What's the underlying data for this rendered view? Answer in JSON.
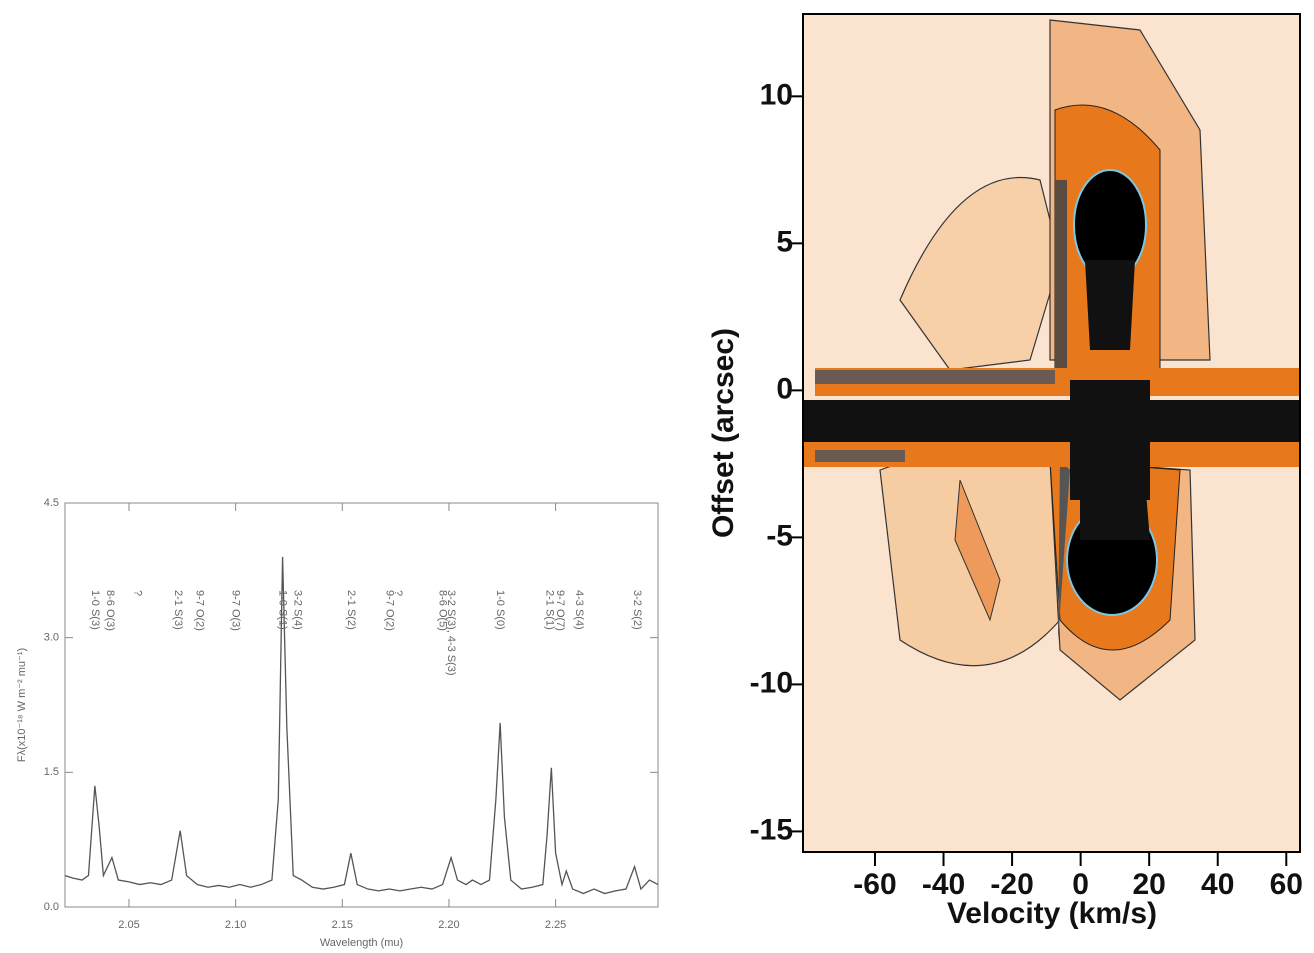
{
  "chart_data": [
    {
      "type": "line",
      "x_label": "Wavelength (mu)",
      "y_label": "Fλ(x10⁻¹⁸ W m⁻² mu⁻¹)",
      "xlim": [
        2.02,
        2.298
      ],
      "ylim": [
        0,
        4.5
      ],
      "xticks": [
        2.05,
        {
          "value": 2.1,
          "label": "2.10"
        },
        2.15,
        {
          "value": 2.2,
          "label": "2.20"
        },
        2.25
      ],
      "yticks": [
        {
          "value": 0,
          "label": "0.0"
        },
        1.5,
        {
          "value": 3,
          "label": "3.0"
        },
        4.5
      ],
      "color": "#555555",
      "x": [
        2.02,
        2.024,
        2.028,
        2.031,
        2.034,
        2.036,
        2.038,
        2.042,
        2.045,
        2.05,
        2.055,
        2.06,
        2.065,
        2.07,
        2.074,
        2.077,
        2.082,
        2.087,
        2.092,
        2.097,
        2.102,
        2.107,
        2.112,
        2.117,
        2.12,
        2.122,
        2.124,
        2.127,
        2.131,
        2.136,
        2.141,
        2.146,
        2.151,
        2.154,
        2.157,
        2.162,
        2.167,
        2.172,
        2.177,
        2.182,
        2.187,
        2.192,
        2.197,
        2.201,
        2.204,
        2.208,
        2.211,
        2.215,
        2.219,
        2.222,
        2.224,
        2.226,
        2.229,
        2.234,
        2.239,
        2.244,
        2.246,
        2.248,
        2.25,
        2.253,
        2.255,
        2.258,
        2.263,
        2.268,
        2.273,
        2.278,
        2.283,
        2.287,
        2.29,
        2.294,
        2.298
      ],
      "values": [
        0.35,
        0.32,
        0.3,
        0.35,
        1.35,
        0.9,
        0.35,
        0.55,
        0.3,
        0.28,
        0.25,
        0.27,
        0.25,
        0.3,
        0.85,
        0.35,
        0.25,
        0.22,
        0.24,
        0.22,
        0.25,
        0.22,
        0.25,
        0.3,
        1.2,
        3.9,
        2.0,
        0.35,
        0.3,
        0.22,
        0.2,
        0.22,
        0.25,
        0.6,
        0.25,
        0.2,
        0.18,
        0.2,
        0.18,
        0.2,
        0.22,
        0.2,
        0.25,
        0.55,
        0.3,
        0.25,
        0.3,
        0.25,
        0.3,
        1.2,
        2.05,
        1.0,
        0.3,
        0.2,
        0.22,
        0.25,
        0.8,
        1.55,
        0.6,
        0.25,
        0.4,
        0.2,
        0.15,
        0.2,
        0.15,
        0.18,
        0.2,
        0.45,
        0.2,
        0.3,
        0.25
      ],
      "annotations": [
        {
          "x": 2.034,
          "label": "1-0 S(3)"
        },
        {
          "x": 2.041,
          "label": "8-6 O(3)"
        },
        {
          "x": 2.054,
          "label": "?"
        },
        {
          "x": 2.073,
          "label": "2-1 S(3)"
        },
        {
          "x": 2.083,
          "label": "9-7 O(2)"
        },
        {
          "x": 2.1,
          "label": "9-7 O(3)"
        },
        {
          "x": 2.122,
          "label": "1-0 S(1)"
        },
        {
          "x": 2.129,
          "label": "3-2 S(4)"
        },
        {
          "x": 2.154,
          "label": "2-1 S(2)"
        },
        {
          "x": 2.172,
          "label": "9-7 O(2)"
        },
        {
          "x": 2.176,
          "label": "?"
        },
        {
          "x": 2.197,
          "label": "8-6 O(5)"
        },
        {
          "x": 2.201,
          "label": "3-2 S(3), 4-3 S(3)"
        },
        {
          "x": 2.224,
          "label": "1-0 S(0)"
        },
        {
          "x": 2.247,
          "label": "2-1 S(1)"
        },
        {
          "x": 2.252,
          "label": "9-7 O(7)"
        },
        {
          "x": 2.261,
          "label": "4-3 S(4)"
        },
        {
          "x": 2.288,
          "label": "3-2 S(2)"
        }
      ]
    },
    {
      "type": "contour",
      "x_label": "Velocity (km/s)",
      "y_label": "Offset (arcsec)",
      "xlim": [
        -81,
        64
      ],
      "ylim": [
        -15.7,
        12.8
      ],
      "xticks": [
        -60,
        -40,
        -20,
        0,
        20,
        40,
        60
      ],
      "yticks": [
        -15,
        -10,
        -5,
        0,
        5,
        10
      ]
    }
  ]
}
